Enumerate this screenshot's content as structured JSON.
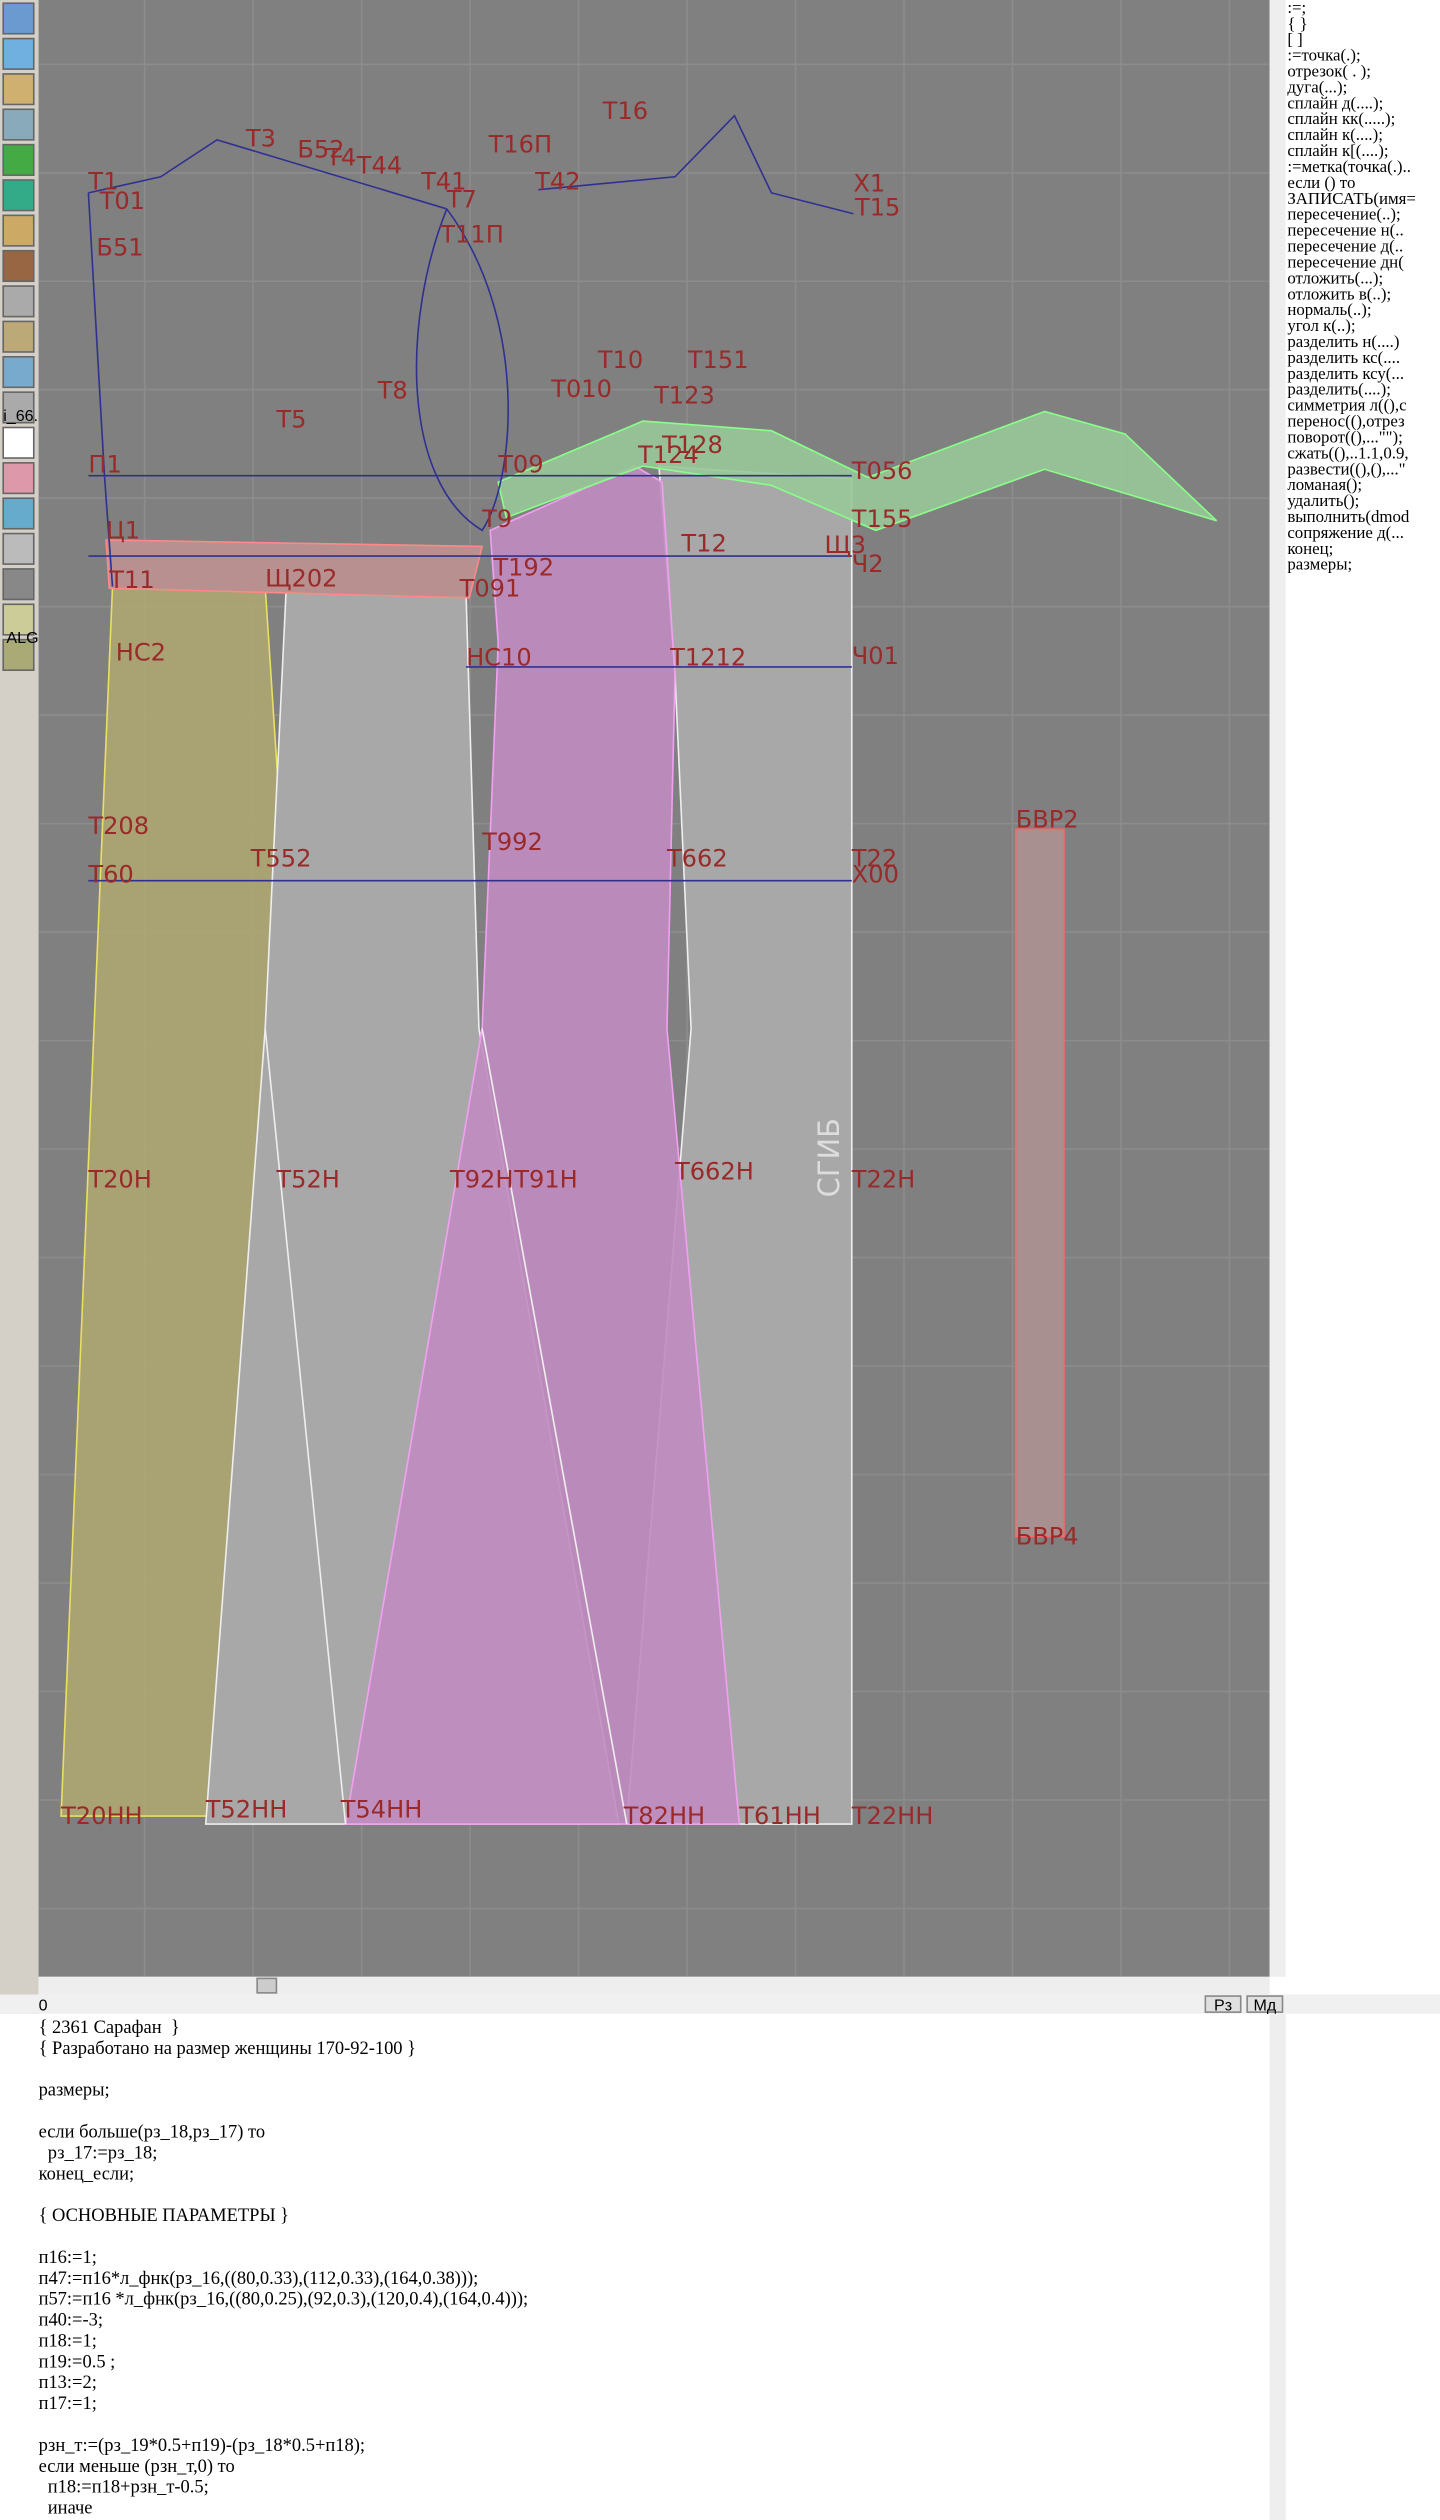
{
  "toolbar": {
    "labels": [
      "i_66.",
      "ALG"
    ]
  },
  "canvas": {
    "labels": [
      "Т1",
      "Т01",
      "Т3",
      "Б52",
      "Т4",
      "Т44",
      "Т41",
      "Т7",
      "Т16П",
      "Т16",
      "Т42",
      "Х1",
      "Т15",
      "Б51",
      "Т11П",
      "Т10",
      "Т151",
      "Т8",
      "Т010",
      "Т123",
      "Т5",
      "П1",
      "Т09",
      "Т128",
      "Т124",
      "Т056",
      "Т9",
      "Т155",
      "Ц1",
      "Т192",
      "Т12",
      "Щ3",
      "Ч2",
      "Т11",
      "Щ202",
      "Т091",
      "НС2",
      "НС10",
      "Т1212",
      "Ч01",
      "Т208",
      "Т552",
      "Т992",
      "Т662",
      "Т22",
      "Т60",
      "Х00",
      "БВР2",
      "Т20Н",
      "Т52Н",
      "Т92Н",
      "Т91Н",
      "Т662Н",
      "Т22Н",
      "БВР4",
      "Т20НН",
      "Т52НН",
      "Т54НН",
      "Т82НН",
      "Т61НН",
      "Т22НН"
    ],
    "fold_label": "СГИБ"
  },
  "commands": [
    ":=;",
    "{ }",
    "[ ]",
    ":=точка(.);",
    "отрезок( . );",
    "дуга(...);",
    "сплайн д(....);",
    "сплайн кк(.....);",
    "сплайн к(....);",
    "сплайн к[(....);",
    ":=метка(точка(.)..",
    "если () то",
    "ЗАПИСАТЬ(имя=",
    "пересечение(..);",
    "пересечение н(..",
    "пересечение д(..",
    "пересечение дн(",
    "отложить(...);",
    "отложить в(..);",
    "нормаль(..);",
    "угол к(..);",
    "разделить н(....)",
    "разделить кс(....",
    "разделить ксу(...",
    "разделить(....);",
    "симметрия л((),с",
    "перенос((),отрез",
    "поворот((),...\"\");",
    "сжать((),..1.1,0.9,",
    "развести((),(),...\"",
    "ломаная();",
    "удалить();",
    "выполнить(dmod",
    "сопряжение д(...",
    "конец;",
    "размеры;"
  ],
  "status": {
    "position": "0",
    "buttons": [
      "Рз",
      "Мд"
    ]
  },
  "editor": {
    "blocks": [
      [
        "{ 2361 Сарафан  }",
        "{ Разработано на размер женщины 170-92-100 }"
      ],
      [
        "размеры;"
      ],
      [
        "если больше(рз_18,рз_17) то",
        "  рз_17:=рз_18;",
        "конец_если;"
      ],
      [
        "{ ОСНОВНЫЕ ПАРАМЕТРЫ }"
      ],
      [
        "п16:=1;",
        "п47:=п16*л_фнк(рз_16,((80,0.33),(112,0.33),(164,0.38)));",
        "п57:=п16 *л_фнк(рз_16,((80,0.25),(92,0.3),(120,0.4),(164,0.4)));",
        "п40:=-3;",
        "п18:=1;",
        "п19:=0.5 ;",
        "п13:=2;",
        "п17:=1;"
      ],
      [
        "рзн_т:=(рз_19*0.5+п19)-(рз_18*0.5+п18);",
        "если меньше (рзн_т,0) то",
        "  п18:=п18+рзн_т-0.5;",
        "  иначе"
      ]
    ]
  }
}
